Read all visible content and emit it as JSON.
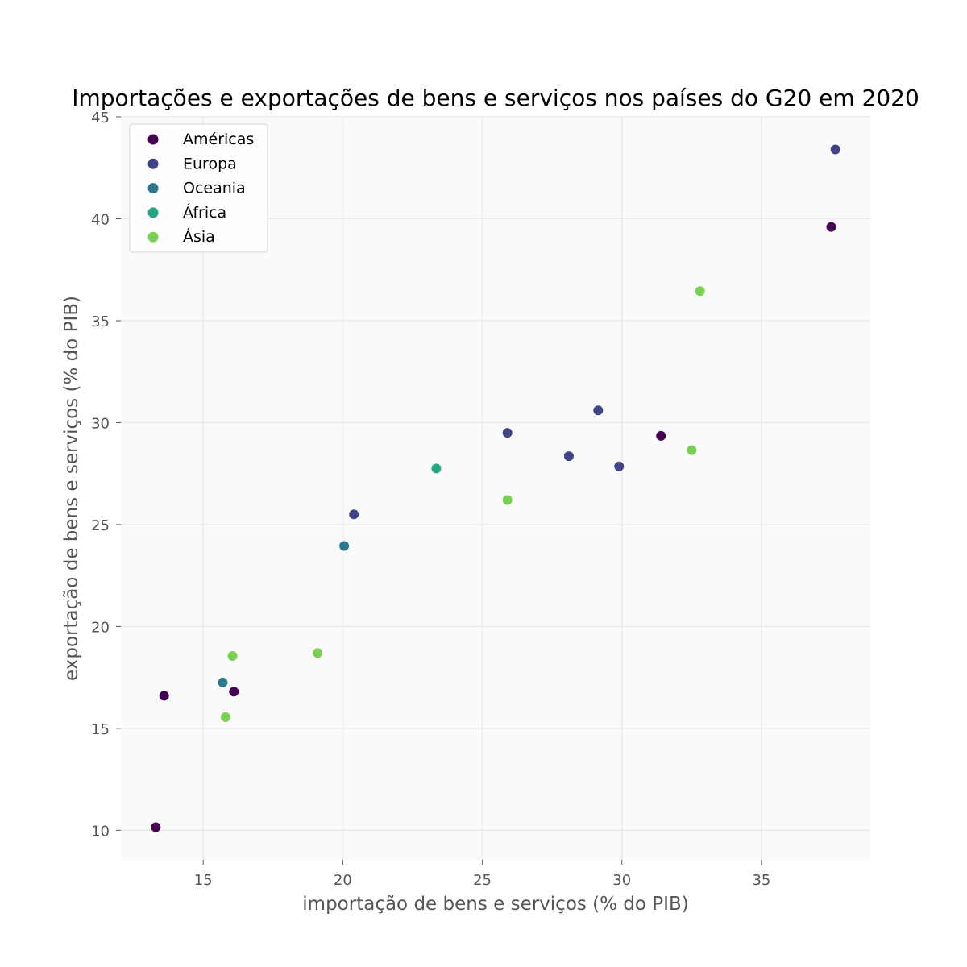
{
  "chart_data": {
    "type": "scatter",
    "title": "Importações e exportações de bens e serviços nos países do G20 em 2020",
    "xlabel": "importação de bens e serviços (% do PIB)",
    "ylabel": "exportação de bens e serviços (% do PIB)",
    "xlim": [
      12.05,
      38.9
    ],
    "ylim": [
      8.55,
      45.0
    ],
    "xticks": [
      15,
      20,
      25,
      30,
      35
    ],
    "yticks": [
      10,
      15,
      20,
      25,
      30,
      35,
      40,
      45
    ],
    "grid": true,
    "legend_position": "top-left",
    "series": [
      {
        "name": "Américas",
        "color": "#440154",
        "points": [
          {
            "x": 13.3,
            "y": 10.15
          },
          {
            "x": 13.6,
            "y": 16.6
          },
          {
            "x": 16.1,
            "y": 16.8
          },
          {
            "x": 31.4,
            "y": 29.35
          },
          {
            "x": 37.5,
            "y": 39.6
          }
        ]
      },
      {
        "name": "Europa",
        "color": "#414487",
        "points": [
          {
            "x": 20.4,
            "y": 25.5
          },
          {
            "x": 25.9,
            "y": 29.5
          },
          {
            "x": 28.1,
            "y": 28.35
          },
          {
            "x": 29.15,
            "y": 30.6
          },
          {
            "x": 29.9,
            "y": 27.85
          },
          {
            "x": 37.65,
            "y": 43.4
          }
        ]
      },
      {
        "name": "Oceania",
        "color": "#2a788e",
        "points": [
          {
            "x": 15.7,
            "y": 17.25
          },
          {
            "x": 20.05,
            "y": 23.95
          }
        ]
      },
      {
        "name": "África",
        "color": "#22a884",
        "points": [
          {
            "x": 23.35,
            "y": 27.75
          }
        ]
      },
      {
        "name": "Ásia",
        "color": "#7ad151",
        "points": [
          {
            "x": 15.8,
            "y": 15.55
          },
          {
            "x": 16.05,
            "y": 18.55
          },
          {
            "x": 19.1,
            "y": 18.7
          },
          {
            "x": 25.9,
            "y": 26.2
          },
          {
            "x": 32.5,
            "y": 28.65
          },
          {
            "x": 32.8,
            "y": 36.45
          }
        ]
      }
    ]
  }
}
